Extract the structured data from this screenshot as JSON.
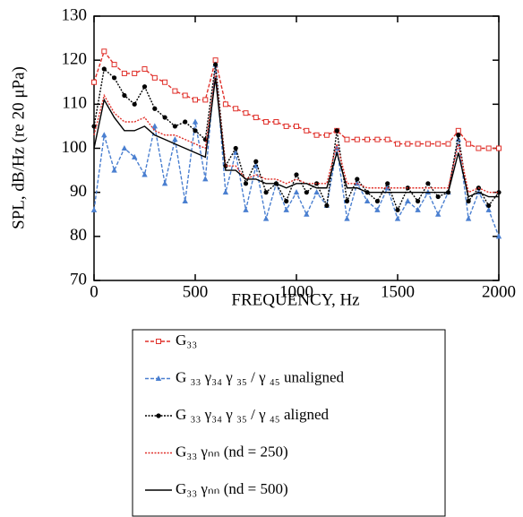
{
  "chart_data": {
    "type": "line",
    "x_label": "FREQUENCY, Hz",
    "y_label": "SPL, dB/Hz (re 20 μPa)",
    "xlim": [
      0,
      2000
    ],
    "xticks": [
      0,
      500,
      1000,
      1500,
      2000
    ],
    "ylim": [
      70,
      130
    ],
    "yticks": [
      70,
      80,
      90,
      100,
      110,
      120,
      130
    ],
    "legend": "bottom",
    "x": [
      0,
      50,
      100,
      150,
      200,
      250,
      300,
      350,
      400,
      450,
      500,
      550,
      600,
      650,
      700,
      750,
      800,
      850,
      900,
      950,
      1000,
      1050,
      1100,
      1150,
      1200,
      1250,
      1300,
      1350,
      1400,
      1450,
      1500,
      1550,
      1600,
      1650,
      1700,
      1750,
      1800,
      1850,
      1900,
      1950,
      2000
    ],
    "series": [
      {
        "name": "G₃₃",
        "color": "#e0302a",
        "marker": "square",
        "dash": "dashed",
        "values": [
          115,
          122,
          119,
          117,
          117,
          118,
          116,
          115,
          113,
          112,
          111,
          111,
          120,
          110,
          109,
          108,
          107,
          106,
          106,
          105,
          105,
          104,
          103,
          103,
          104,
          102,
          102,
          102,
          102,
          102,
          101,
          101,
          101,
          101,
          101,
          101,
          104,
          101,
          100,
          100,
          100
        ]
      },
      {
        "name": "G ₃₃ γ₃₄ γ ₃₅ /  γ ₄₅ unaligned",
        "color": "#4a7fd0",
        "marker": "triangle",
        "dash": "dashed",
        "values": [
          86,
          103,
          95,
          100,
          98,
          94,
          105,
          92,
          102,
          88,
          106,
          93,
          119,
          90,
          99,
          86,
          96,
          84,
          92,
          86,
          90,
          85,
          90,
          87,
          100,
          84,
          92,
          88,
          86,
          91,
          84,
          88,
          86,
          90,
          85,
          90,
          102,
          84,
          90,
          86,
          80
        ]
      },
      {
        "name": "G ₃₃ γ₃₄ γ ₃₅ /  γ ₄₅ aligned",
        "color": "#000000",
        "marker": "circle",
        "dash": "dotted",
        "values": [
          105,
          118,
          116,
          112,
          110,
          114,
          109,
          107,
          105,
          106,
          104,
          102,
          119,
          96,
          100,
          92,
          97,
          90,
          92,
          88,
          94,
          90,
          92,
          87,
          104,
          88,
          93,
          90,
          88,
          92,
          86,
          91,
          88,
          92,
          89,
          90,
          103,
          88,
          91,
          87,
          90
        ]
      },
      {
        "name": "G₃₃ γₙₙ (nd = 250)",
        "color": "#e0302a",
        "marker": "none",
        "dash": "dotted",
        "values": [
          103,
          112,
          108,
          106,
          106,
          107,
          104,
          103,
          103,
          102,
          101,
          100,
          117,
          96,
          96,
          93,
          94,
          93,
          93,
          92,
          93,
          92,
          92,
          92,
          101,
          92,
          92,
          91,
          91,
          91,
          91,
          91,
          91,
          91,
          91,
          91,
          101,
          90,
          91,
          90,
          90
        ]
      },
      {
        "name": "G₃₃ γₙₙ (nd = 500)",
        "color": "#000000",
        "marker": "none",
        "dash": "solid",
        "values": [
          100,
          111,
          107,
          104,
          104,
          105,
          103,
          102,
          101,
          100,
          99,
          98,
          116,
          95,
          95,
          93,
          93,
          92,
          92,
          91,
          92,
          92,
          91,
          91,
          99,
          91,
          91,
          90,
          90,
          90,
          90,
          90,
          90,
          90,
          90,
          90,
          99,
          89,
          90,
          89,
          89
        ]
      }
    ]
  }
}
